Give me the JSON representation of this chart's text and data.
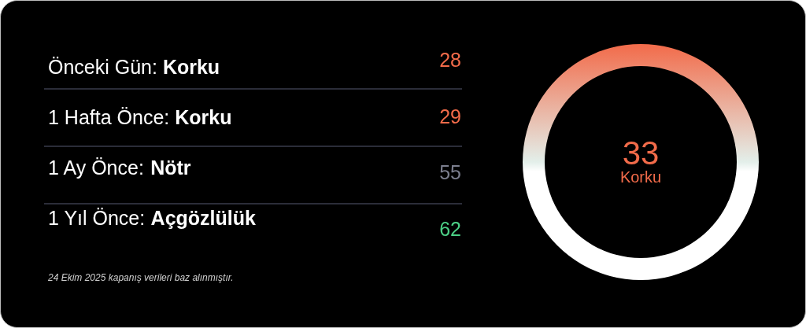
{
  "chart_data": [
    {
      "type": "other",
      "categories": [
        "Önceki Gün: Korku",
        "1 Hafta Önce: Korku",
        "1 Ay Önce: Nötr",
        "1 Yıl Önce: Açgözlülük"
      ],
      "values": [
        28,
        29,
        55,
        62
      ],
      "colors": [
        "#f26b4a",
        "#f26b4a",
        "#7b7e8e",
        "#4ccf86"
      ],
      "data_labels": true,
      "annotations": [
        "24 Ekim 2025 kapanış verileri baz alınmıştır."
      ]
    },
    {
      "type": "other",
      "categories": [
        "Korku"
      ],
      "values": [
        33
      ],
      "colors": [
        "#f26b4a"
      ],
      "data_labels": true
    }
  ]
}
